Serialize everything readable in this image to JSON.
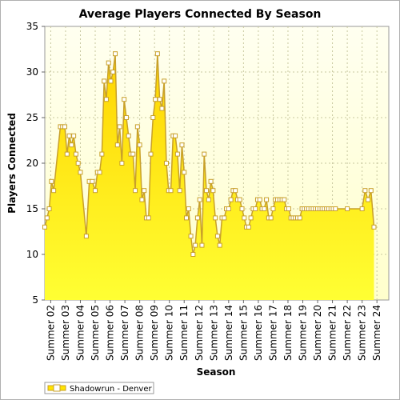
{
  "chart_data": {
    "type": "area",
    "title": "Average Players Connected By Season",
    "xlabel": "Season",
    "ylabel": "Players Connected",
    "ylim": [
      5,
      35
    ],
    "yticks": [
      5,
      10,
      15,
      20,
      25,
      30,
      35
    ],
    "xlim": [
      1.6,
      24.8
    ],
    "xticks": [
      {
        "x": 2,
        "label": "Summer 02"
      },
      {
        "x": 3,
        "label": "Summer 03"
      },
      {
        "x": 4,
        "label": "Summer 04"
      },
      {
        "x": 5,
        "label": "Summer 05"
      },
      {
        "x": 6,
        "label": "Summer 06"
      },
      {
        "x": 7,
        "label": "Summer 07"
      },
      {
        "x": 8,
        "label": "Summer 08"
      },
      {
        "x": 9,
        "label": "Summer 09"
      },
      {
        "x": 10,
        "label": "Summer 10"
      },
      {
        "x": 11,
        "label": "Summer 11"
      },
      {
        "x": 12,
        "label": "Summer 12"
      },
      {
        "x": 13,
        "label": "Summer 13"
      },
      {
        "x": 14,
        "label": "Summer 14"
      },
      {
        "x": 15,
        "label": "Summer 15"
      },
      {
        "x": 16,
        "label": "Summer 16"
      },
      {
        "x": 17,
        "label": "Summer 17"
      },
      {
        "x": 18,
        "label": "Summer 18"
      },
      {
        "x": 19,
        "label": "Summer 19"
      },
      {
        "x": 20,
        "label": "Summer 20"
      },
      {
        "x": 21,
        "label": "Summer 21"
      },
      {
        "x": 22,
        "label": "Summer 22"
      },
      {
        "x": 23,
        "label": "Summer 23"
      },
      {
        "x": 24,
        "label": "Summer 24"
      }
    ],
    "grid": true,
    "legend_position": "bottom-left",
    "series": [
      {
        "name": "Shadowrun - Denver",
        "color": "#ffe400",
        "line_color": "#c8a02a",
        "x": [
          1.6,
          1.75,
          1.9,
          2.05,
          2.2,
          2.65,
          2.8,
          2.95,
          3.1,
          3.25,
          3.4,
          3.55,
          3.7,
          3.85,
          4.0,
          4.4,
          4.6,
          4.8,
          5.0,
          5.15,
          5.3,
          5.45,
          5.6,
          5.75,
          5.9,
          6.05,
          6.2,
          6.35,
          6.5,
          6.65,
          6.8,
          6.95,
          7.1,
          7.25,
          7.4,
          7.55,
          7.7,
          7.85,
          8.0,
          8.15,
          8.3,
          8.45,
          8.6,
          8.75,
          8.9,
          9.05,
          9.2,
          9.35,
          9.5,
          9.65,
          9.8,
          9.95,
          10.1,
          10.25,
          10.4,
          10.55,
          10.7,
          10.85,
          11.0,
          11.15,
          11.3,
          11.45,
          11.6,
          11.75,
          11.9,
          12.05,
          12.2,
          12.35,
          12.5,
          12.65,
          12.8,
          12.95,
          13.1,
          13.25,
          13.4,
          13.55,
          13.7,
          13.85,
          14.0,
          14.15,
          14.3,
          14.45,
          14.6,
          14.75,
          14.9,
          15.05,
          15.2,
          15.35,
          15.5,
          15.65,
          15.8,
          15.95,
          16.1,
          16.25,
          16.4,
          16.55,
          16.7,
          16.85,
          17.0,
          17.15,
          17.3,
          17.45,
          17.6,
          17.75,
          17.9,
          18.05,
          18.2,
          18.35,
          18.5,
          18.65,
          18.8,
          18.95,
          19.1,
          19.25,
          19.4,
          19.55,
          19.7,
          19.85,
          20.0,
          20.15,
          20.3,
          20.45,
          20.6,
          20.75,
          20.9,
          21.05,
          21.2,
          22.0,
          23.0,
          23.2,
          23.4,
          23.6,
          23.8
        ],
        "y": [
          13,
          14,
          15,
          18,
          17,
          24,
          24,
          24,
          21,
          23,
          22,
          23,
          21,
          20,
          19,
          12,
          18,
          18,
          17,
          19,
          19,
          21,
          29,
          27,
          31,
          29,
          30,
          32,
          22,
          24,
          20,
          27,
          25,
          23,
          21,
          21,
          17,
          24,
          22,
          16,
          17,
          14,
          14,
          21,
          25,
          27,
          32,
          27,
          26,
          29,
          20,
          17,
          17,
          23,
          23,
          21,
          17,
          22,
          19,
          14,
          15,
          12,
          10,
          11,
          14,
          16,
          11,
          21,
          17,
          16,
          18,
          17,
          14,
          12,
          11,
          14,
          14,
          15,
          15,
          16,
          17,
          17,
          16,
          16,
          15,
          14,
          13,
          13,
          14,
          15,
          15,
          16,
          16,
          15,
          15,
          16,
          14,
          14,
          15,
          16,
          16,
          16,
          16,
          16,
          15,
          15,
          14,
          14,
          14,
          14,
          14,
          15,
          15,
          15,
          15,
          15,
          15,
          15,
          15,
          15,
          15,
          15,
          15,
          15,
          15,
          15,
          15,
          15,
          15,
          17,
          16,
          17,
          13
        ]
      }
    ]
  }
}
